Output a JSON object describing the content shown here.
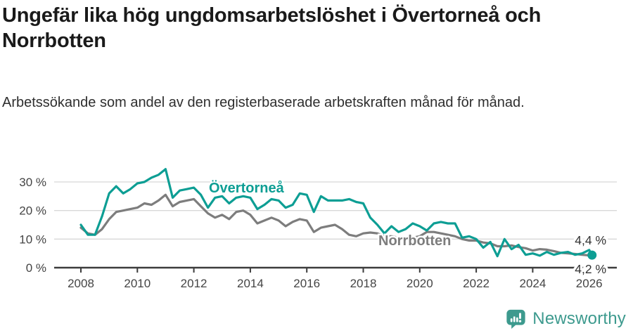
{
  "header": {
    "title": "Ungefär lika hög ungdomsarbetslöshet i Övertorneå och Norrbotten",
    "subtitle": "Arbetssökande som andel av den registerbaserade arbetskraften månad för månad."
  },
  "chart_data": {
    "type": "line",
    "title": "Ungefär lika hög ungdomsarbetslöshet i Övertorneå och Norrbotten",
    "subtitle": "Arbetssökande som andel av den registerbaserade arbetskraften månad för månad.",
    "grid": "horizontal",
    "legend_position": "inline-labels",
    "x_axis": {
      "ticks": [
        2008,
        2010,
        2012,
        2014,
        2016,
        2018,
        2020,
        2022,
        2024,
        2026
      ],
      "range": [
        2007.9,
        2027
      ]
    },
    "y_axis": {
      "ticks": [
        0,
        10,
        20,
        30
      ],
      "tick_suffix": " %",
      "range": [
        0,
        36
      ]
    },
    "colors": {
      "overtornea": "#0D9E94",
      "norrbotten": "#7D7D7D",
      "axis": "#3C3C3C",
      "gridline": "#D8D8D8"
    },
    "x": [
      2008,
      2008.25,
      2008.5,
      2008.75,
      2009,
      2009.25,
      2009.5,
      2009.75,
      2010,
      2010.25,
      2010.5,
      2010.75,
      2011,
      2011.25,
      2011.5,
      2011.75,
      2012,
      2012.25,
      2012.5,
      2012.75,
      2013,
      2013.25,
      2013.5,
      2013.75,
      2014,
      2014.25,
      2014.5,
      2014.75,
      2015,
      2015.25,
      2015.5,
      2015.75,
      2016,
      2016.25,
      2016.5,
      2016.75,
      2017,
      2017.25,
      2017.5,
      2017.75,
      2018,
      2018.25,
      2018.5,
      2018.75,
      2019,
      2019.25,
      2019.5,
      2019.75,
      2020,
      2020.25,
      2020.5,
      2020.75,
      2021,
      2021.25,
      2021.5,
      2021.75,
      2022,
      2022.25,
      2022.5,
      2022.75,
      2023,
      2023.25,
      2023.5,
      2023.75,
      2024,
      2024.25,
      2024.5,
      2024.75,
      2025,
      2025.25,
      2025.5,
      2025.75,
      2026,
      2026.1
    ],
    "series": [
      {
        "name": "Övertorneå",
        "color": "#0D9E94",
        "end_label": "4,4 %",
        "end_value": 4.4,
        "values": [
          15,
          11.5,
          11.5,
          18,
          26,
          28.5,
          26,
          27.5,
          29.5,
          30,
          31.5,
          32.5,
          34.5,
          24.5,
          27,
          27.5,
          28,
          25.5,
          21,
          24.5,
          25,
          22.5,
          24.5,
          25,
          24.5,
          20.5,
          22,
          24,
          23.5,
          21,
          22,
          26,
          25.5,
          19.5,
          25,
          23.5,
          23.5,
          23.5,
          24,
          23,
          22.5,
          17.5,
          15,
          12,
          14.5,
          12.5,
          13.5,
          15.5,
          14.5,
          13,
          15.5,
          16,
          15.5,
          15.5,
          10.5,
          11,
          10,
          7,
          9,
          4,
          10,
          6.5,
          8,
          4.5,
          5,
          4.2,
          5.5,
          4.5,
          5.2,
          5.5,
          4.5,
          5,
          6.2,
          4.4
        ]
      },
      {
        "name": "Norrbotten",
        "color": "#7D7D7D",
        "end_label": "4,2 %",
        "end_value": 4.2,
        "values": [
          14,
          12,
          11.5,
          13.5,
          17,
          19.5,
          20,
          20.5,
          21,
          22.5,
          22,
          23.5,
          25.5,
          21.5,
          23,
          23.5,
          24,
          21.5,
          19,
          17.5,
          18.5,
          17,
          19.5,
          20,
          18.5,
          15.5,
          16.5,
          17.5,
          16.5,
          14.5,
          16,
          17,
          16.5,
          12.5,
          14,
          14.5,
          15,
          13.5,
          11.5,
          11,
          12,
          12.3,
          12,
          11,
          11,
          10.5,
          10.5,
          10.5,
          11,
          12.5,
          12.5,
          12,
          11.5,
          11,
          10,
          9.5,
          9.5,
          8.8,
          8.5,
          7.5,
          7.5,
          7.8,
          7.2,
          6.8,
          6,
          6.5,
          6.3,
          5.8,
          5.2,
          5,
          4.8,
          4.5,
          4.3,
          4.2
        ]
      }
    ]
  },
  "brand": {
    "name": "Newsworthy",
    "color": "#3D9A8E",
    "icon": "bar-chart-speech-bubble-icon"
  }
}
